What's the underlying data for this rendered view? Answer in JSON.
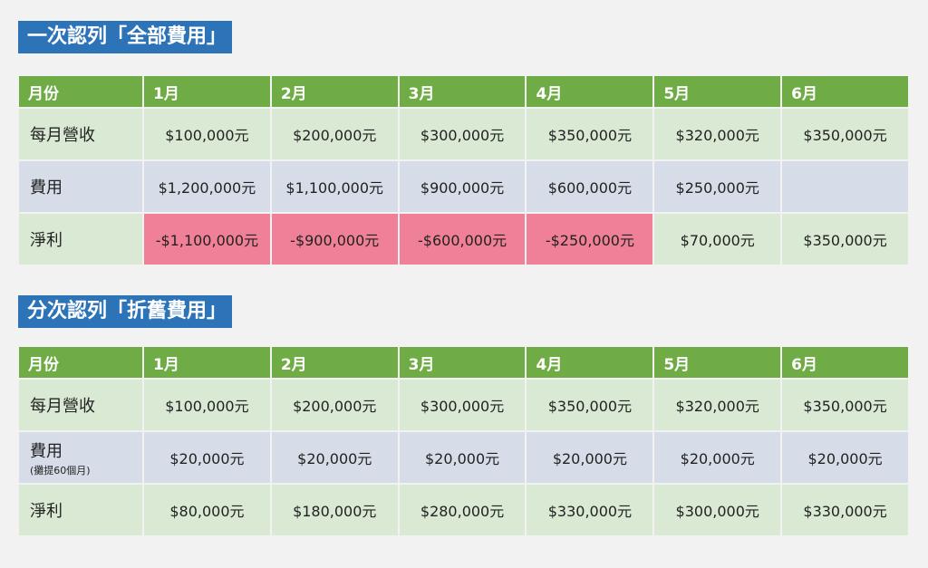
{
  "section1": {
    "title": "一次認列「全部費用」",
    "headers": [
      "月份",
      "1月",
      "2月",
      "3月",
      "4月",
      "5月",
      "6月"
    ],
    "rows": [
      {
        "label": "每月營收",
        "values": [
          "$100,000元",
          "$200,000元",
          "$300,000元",
          "$350,000元",
          "$320,000元",
          "$350,000元"
        ]
      },
      {
        "label": "費用",
        "values": [
          "$1,200,000元",
          "$1,100,000元",
          "$900,000元",
          "$600,000元",
          "$250,000元",
          ""
        ]
      },
      {
        "label": "淨利",
        "values": [
          "-$1,100,000元",
          "-$900,000元",
          "-$600,000元",
          "-$250,000元",
          "$70,000元",
          "$350,000元"
        ]
      }
    ]
  },
  "section2": {
    "title": "分次認列「折舊費用」",
    "headers": [
      "月份",
      "1月",
      "2月",
      "3月",
      "4月",
      "5月",
      "6月"
    ],
    "rows": [
      {
        "label": "每月營收",
        "values": [
          "$100,000元",
          "$200,000元",
          "$300,000元",
          "$350,000元",
          "$320,000元",
          "$350,000元"
        ]
      },
      {
        "label": "費用",
        "note": "(攤提60個月)",
        "values": [
          "$20,000元",
          "$20,000元",
          "$20,000元",
          "$20,000元",
          "$20,000元",
          "$20,000元"
        ]
      },
      {
        "label": "淨利",
        "values": [
          "$80,000元",
          "$180,000元",
          "$280,000元",
          "$330,000元",
          "$300,000元",
          "$330,000元"
        ]
      }
    ]
  },
  "colors": {
    "title_bg": "#2d73b8",
    "header_bg": "#6fac46",
    "green_row": "#dae9d4",
    "blue_row": "#d6dde8",
    "negative": "#f07f98"
  }
}
